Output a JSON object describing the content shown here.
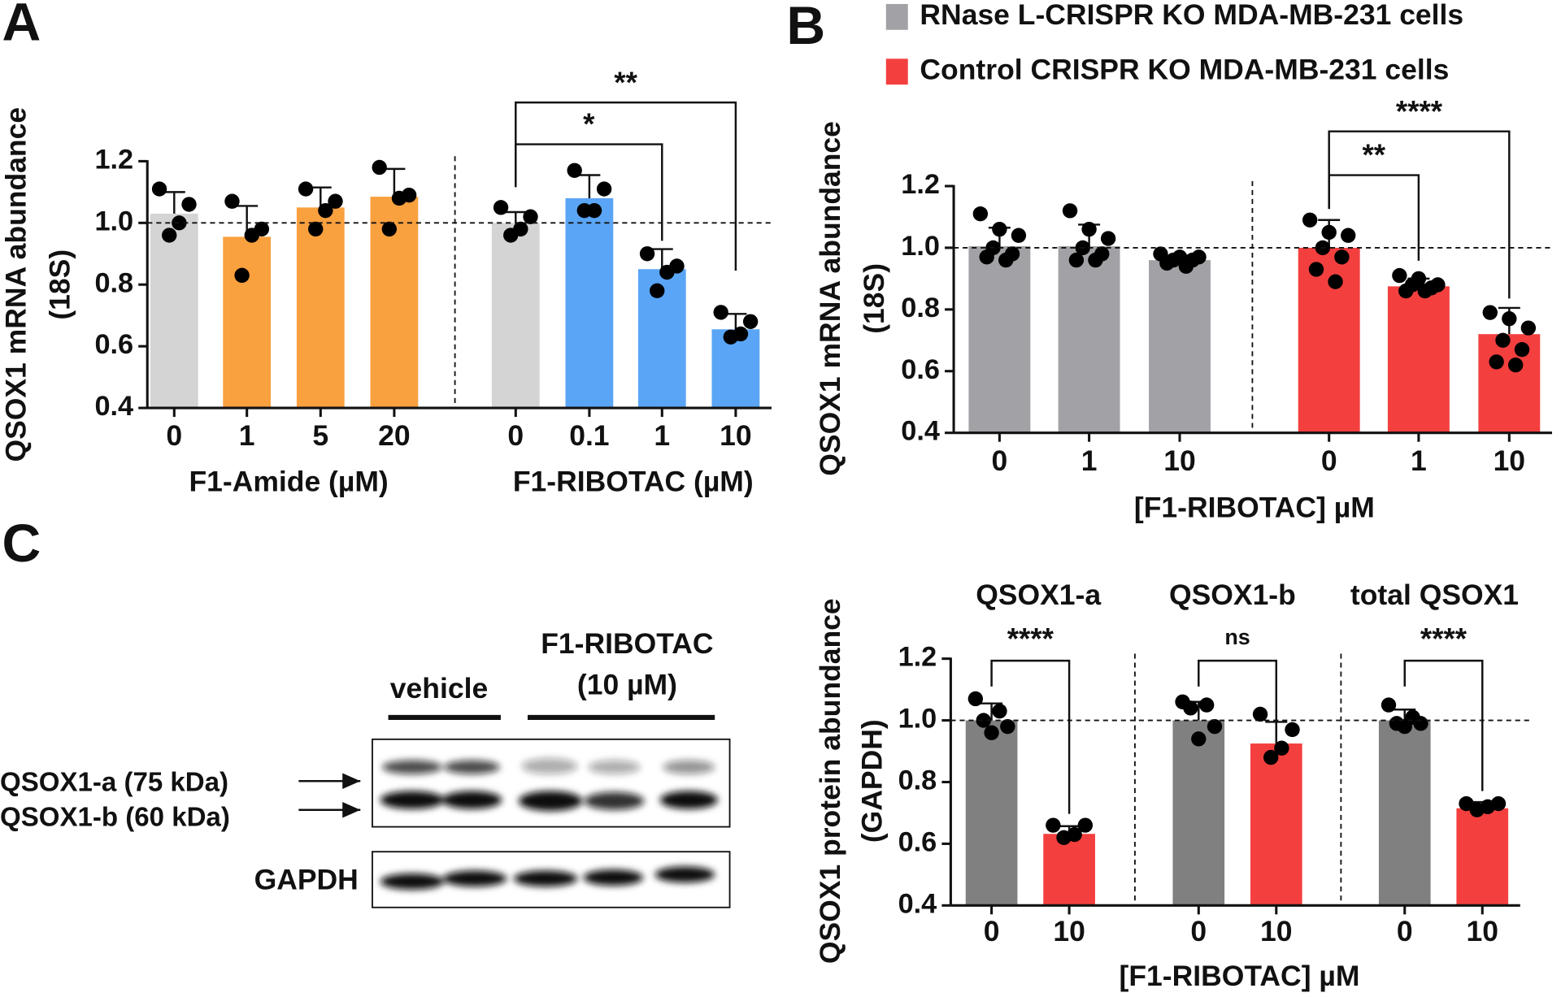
{
  "panel_labels": [
    "A",
    "B",
    "C"
  ],
  "chart_data": [
    {
      "type": "bar",
      "ylabel": [
        "QSOX1 mRNA abundance",
        "(18S)"
      ],
      "group_labels": [
        "F1-Amide (µM)",
        "F1-RIBOTAC (µM)"
      ],
      "categories": [
        "0",
        "1",
        "5",
        "20",
        "0",
        "0.1",
        "1",
        "10"
      ],
      "series": [
        {
          "color": "#d4d4d4",
          "values": [
            1.03,
            null,
            null,
            null,
            1.0,
            null,
            null,
            null
          ],
          "errors": [
            0.07,
            null,
            null,
            null,
            0.035,
            null,
            null,
            null
          ],
          "points": [
            [
              1.11,
              1.06,
              1.0,
              0.96
            ],
            null,
            null,
            null,
            [
              1.05,
              1.02,
              0.98,
              0.96
            ],
            null,
            null,
            null
          ]
        },
        {
          "color": "#f9a03f",
          "values": [
            null,
            0.955,
            1.05,
            1.085,
            null,
            null,
            null,
            null
          ],
          "errors": [
            null,
            0.1,
            0.065,
            0.09,
            null,
            null,
            null,
            null
          ],
          "points": [
            null,
            [
              1.07,
              0.98,
              0.96,
              0.83
            ],
            [
              1.11,
              1.07,
              1.04,
              0.98
            ],
            [
              1.18,
              1.09,
              1.08,
              0.98
            ],
            null,
            null,
            null,
            null
          ]
        },
        {
          "color": "#5aa5f5",
          "values": [
            null,
            null,
            null,
            null,
            null,
            1.08,
            0.85,
            0.655
          ],
          "errors": [
            null,
            null,
            null,
            null,
            null,
            0.075,
            0.065,
            0.05
          ],
          "points": [
            null,
            null,
            null,
            null,
            null,
            [
              1.17,
              1.11,
              1.04,
              1.04
            ],
            [
              0.9,
              0.86,
              0.84,
              0.78
            ],
            [
              0.71,
              0.68,
              0.64,
              0.63
            ]
          ]
        }
      ],
      "reference_line": 1,
      "ylim": [
        0.4,
        1.2
      ],
      "yticks": [
        0.4,
        0.6,
        0.8,
        {
          "value": 1,
          "label": "1.0"
        },
        1.2
      ],
      "annotations": [
        "**",
        "*"
      ]
    },
    {
      "type": "bar",
      "ylabel": [
        "QSOX1 mRNA abundance",
        "(18S)"
      ],
      "xlabel": "[F1-RIBOTAC] µM",
      "categories": [
        "0",
        "1",
        "10",
        "0",
        "1",
        "10"
      ],
      "series": [
        {
          "name": "RNase L-CRISPR KO MDA-MB-231 cells",
          "color": "#a2a2a6",
          "values": [
            1.005,
            1.005,
            0.96,
            null,
            null,
            null
          ],
          "errors": [
            0.06,
            0.07,
            0.015,
            null,
            null,
            null
          ],
          "points": [
            [
              1.11,
              1.06,
              1.04,
              1.0,
              0.98,
              0.97,
              0.96
            ],
            [
              1.12,
              1.06,
              1.03,
              1.0,
              0.98,
              0.96,
              0.96
            ],
            [
              0.98,
              0.97,
              0.97,
              0.96,
              0.96,
              0.95,
              0.94
            ],
            null,
            null,
            null
          ]
        },
        {
          "name": "Control CRISPR KO MDA-MB-231 cells",
          "color": "#f43f3f",
          "values": [
            null,
            null,
            null,
            1.0,
            0.875,
            0.72
          ],
          "errors": [
            null,
            null,
            null,
            0.09,
            0.025,
            0.085
          ],
          "points": [
            null,
            null,
            null,
            [
              1.09,
              1.05,
              1.04,
              1.0,
              0.97,
              0.93,
              0.89
            ],
            [
              0.91,
              0.9,
              0.88,
              0.88,
              0.87,
              0.86,
              0.86
            ],
            [
              0.79,
              0.77,
              0.74,
              0.7,
              0.67,
              0.63,
              0.62
            ]
          ]
        }
      ],
      "reference_line": 1,
      "ylim": [
        0.4,
        1.2
      ],
      "yticks": [
        0.4,
        0.6,
        0.8,
        {
          "value": 1,
          "label": "1.0"
        },
        1.2
      ],
      "annotations": [
        "****",
        "**"
      ],
      "legend": "top"
    },
    {
      "type": "bar",
      "ylabel": [
        "QSOX1 protein abundance",
        "(GAPDH)"
      ],
      "xlabel": "[F1-RIBOTAC] µM",
      "group_titles": [
        "QSOX1-a",
        "QSOX1-b",
        "total QSOX1"
      ],
      "categories": [
        "0",
        "10",
        "0",
        "10",
        "0",
        "10"
      ],
      "series": [
        {
          "color": "#808080",
          "values": [
            1.0,
            null,
            1.0,
            null,
            1.0,
            null
          ],
          "errors": [
            0.055,
            null,
            0.06,
            null,
            0.035,
            null
          ],
          "points": [
            [
              1.07,
              1.03,
              1.0,
              0.98,
              0.96
            ],
            null,
            [
              1.06,
              1.05,
              1.04,
              0.98,
              0.94
            ],
            null,
            [
              1.05,
              1.01,
              0.99,
              0.99,
              0.98
            ],
            null
          ]
        },
        {
          "color": "#f43f3f",
          "values": [
            null,
            0.632,
            null,
            0.925,
            null,
            0.715
          ],
          "errors": [
            null,
            0.025,
            null,
            0.07,
            null,
            0.02
          ],
          "points": [
            null,
            [
              0.66,
              0.66,
              0.63,
              0.62
            ],
            null,
            [
              1.02,
              0.97,
              0.91,
              0.88
            ],
            null,
            [
              0.73,
              0.73,
              0.72,
              0.71
            ]
          ]
        }
      ],
      "reference_line": 1,
      "ylim": [
        0.4,
        1.2
      ],
      "yticks": [
        0.4,
        0.6,
        0.8,
        {
          "value": 1,
          "label": "1.0"
        },
        1.2
      ],
      "annotations": [
        "****",
        "ns",
        "****"
      ]
    }
  ],
  "blot": {
    "vehicle": "vehicle",
    "treatment": [
      "F1-RIBOTAC",
      "(10 µM)"
    ],
    "bands": [
      "QSOX1-a (75 kDa)",
      "QSOX1-b (60 kDa)"
    ],
    "loading": "GAPDH"
  }
}
